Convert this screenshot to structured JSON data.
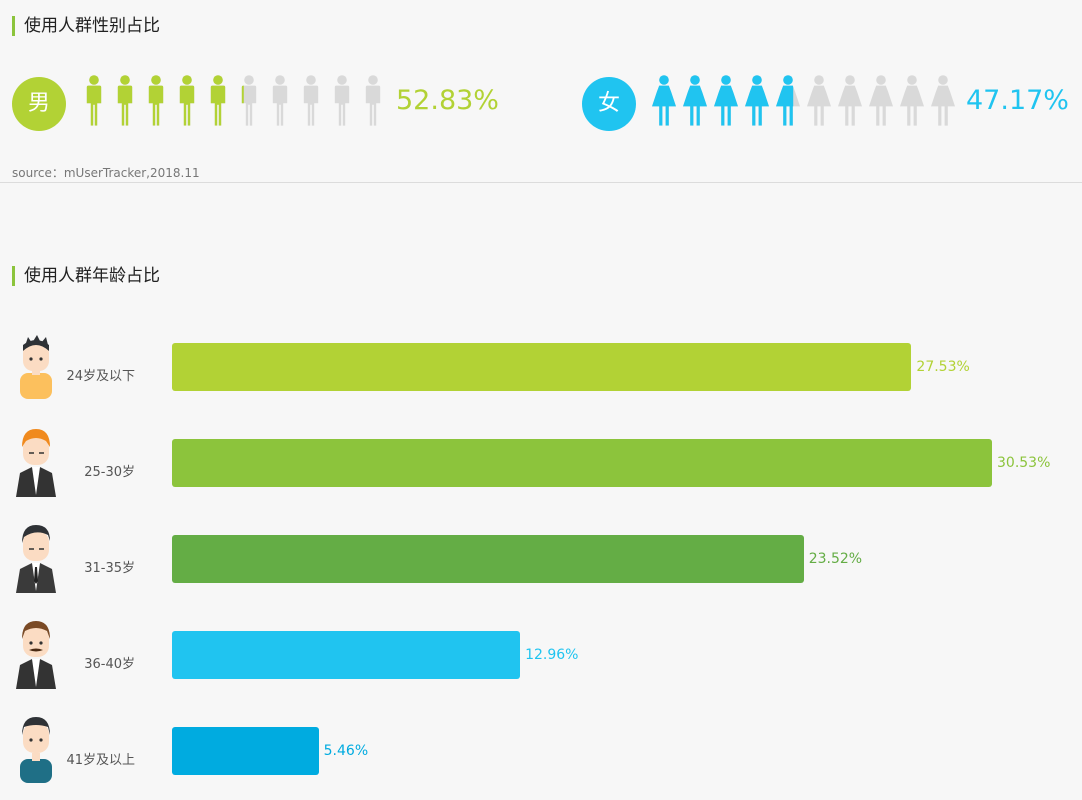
{
  "gender_section": {
    "title": "使用人群性别占比",
    "male": {
      "badge": "男",
      "percent_label": "52.83%",
      "value": 52.83,
      "color": "#b2d235",
      "icon_name": "male-person-icon"
    },
    "female": {
      "badge": "女",
      "percent_label": "47.17%",
      "value": 47.17,
      "color": "#20c4f0",
      "icon_name": "female-person-icon"
    },
    "inactive_color": "#d9d9d9",
    "icons_total": 10,
    "source": "source：mUserTracker,2018.11"
  },
  "age_section": {
    "title": "使用人群年龄占比"
  },
  "chart_data": {
    "type": "bar",
    "orientation": "horizontal",
    "categories": [
      "24岁及以下",
      "25-30岁",
      "31-35岁",
      "36-40岁",
      "41岁及以上"
    ],
    "values": [
      27.53,
      30.53,
      23.52,
      12.96,
      5.46
    ],
    "value_labels": [
      "27.53%",
      "30.53%",
      "23.52%",
      "12.96%",
      "5.46%"
    ],
    "colors": [
      "#b2d235",
      "#8cc43c",
      "#64ad45",
      "#20c4f0",
      "#00abe0"
    ],
    "avatar_icons": [
      "young-boy-avatar-icon",
      "orange-hair-man-avatar-icon",
      "suit-man-avatar-icon",
      "mustache-man-avatar-icon",
      "older-man-avatar-icon"
    ],
    "title": "使用人群年龄占比",
    "xlabel": "",
    "ylabel": "",
    "xlim": [
      0,
      30.53
    ]
  }
}
